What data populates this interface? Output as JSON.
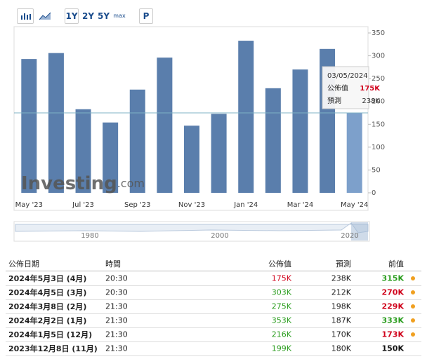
{
  "toolbar": {
    "ranges": [
      "1Y",
      "2Y",
      "5Y",
      "max"
    ],
    "print": "P"
  },
  "chart_data": {
    "type": "bar",
    "categories": [
      "May '23",
      null,
      "Jul '23",
      null,
      "Sep '23",
      null,
      "Nov '23",
      null,
      "Jan '24",
      null,
      "Mar '24",
      null,
      "May '24"
    ],
    "values": [
      293,
      306,
      183,
      154,
      226,
      296,
      147,
      173,
      333,
      229,
      270,
      315,
      175
    ],
    "colors": [
      "#5a7eac",
      "#5a7eac",
      "#5a7eac",
      "#5a7eac",
      "#5a7eac",
      "#5a7eac",
      "#5a7eac",
      "#5a7eac",
      "#5a7eac",
      "#5a7eac",
      "#5a7eac",
      "#5a7eac",
      "#7da0cb"
    ],
    "ylim": [
      0,
      350
    ],
    "yticks": [
      0,
      50,
      100,
      150,
      200,
      250,
      300,
      350
    ],
    "tooltip": {
      "index": 12,
      "date": "03/05/2024",
      "rows": [
        {
          "label": "公佈值",
          "value": "175K",
          "color": "#d0021b"
        },
        {
          "label": "預測",
          "value": "238K",
          "color": "#333333"
        }
      ]
    },
    "watermark": {
      "brand": "Investing",
      "suffix": ".com"
    },
    "navigator": {
      "labels": [
        "1980",
        "2000",
        "2020"
      ]
    }
  },
  "table": {
    "headers": [
      "公佈日期",
      "時間",
      "公佈值",
      "預測",
      "前值"
    ],
    "rows": [
      {
        "date": "2024年5月3日 (4月)",
        "time": "20:30",
        "actual": "175K",
        "actual_color": "#d0021b",
        "forecast": "238K",
        "previous": "315K",
        "previous_color": "#2a9d1e",
        "dot": true
      },
      {
        "date": "2024年4月5日 (3月)",
        "time": "20:30",
        "actual": "303K",
        "actual_color": "#2a9d1e",
        "forecast": "212K",
        "previous": "270K",
        "previous_color": "#d0021b",
        "dot": true
      },
      {
        "date": "2024年3月8日 (2月)",
        "time": "21:30",
        "actual": "275K",
        "actual_color": "#2a9d1e",
        "forecast": "198K",
        "previous": "229K",
        "previous_color": "#d0021b",
        "dot": true
      },
      {
        "date": "2024年2月2日 (1月)",
        "time": "21:30",
        "actual": "353K",
        "actual_color": "#2a9d1e",
        "forecast": "187K",
        "previous": "333K",
        "previous_color": "#2a9d1e",
        "dot": true
      },
      {
        "date": "2024年1月5日 (12月)",
        "time": "21:30",
        "actual": "216K",
        "actual_color": "#2a9d1e",
        "forecast": "170K",
        "previous": "173K",
        "previous_color": "#d0021b",
        "dot": true
      },
      {
        "date": "2023年12月8日 (11月)",
        "time": "21:30",
        "actual": "199K",
        "actual_color": "#2a9d1e",
        "forecast": "180K",
        "previous": "150K",
        "previous_color": "#111111",
        "dot": false
      }
    ]
  }
}
